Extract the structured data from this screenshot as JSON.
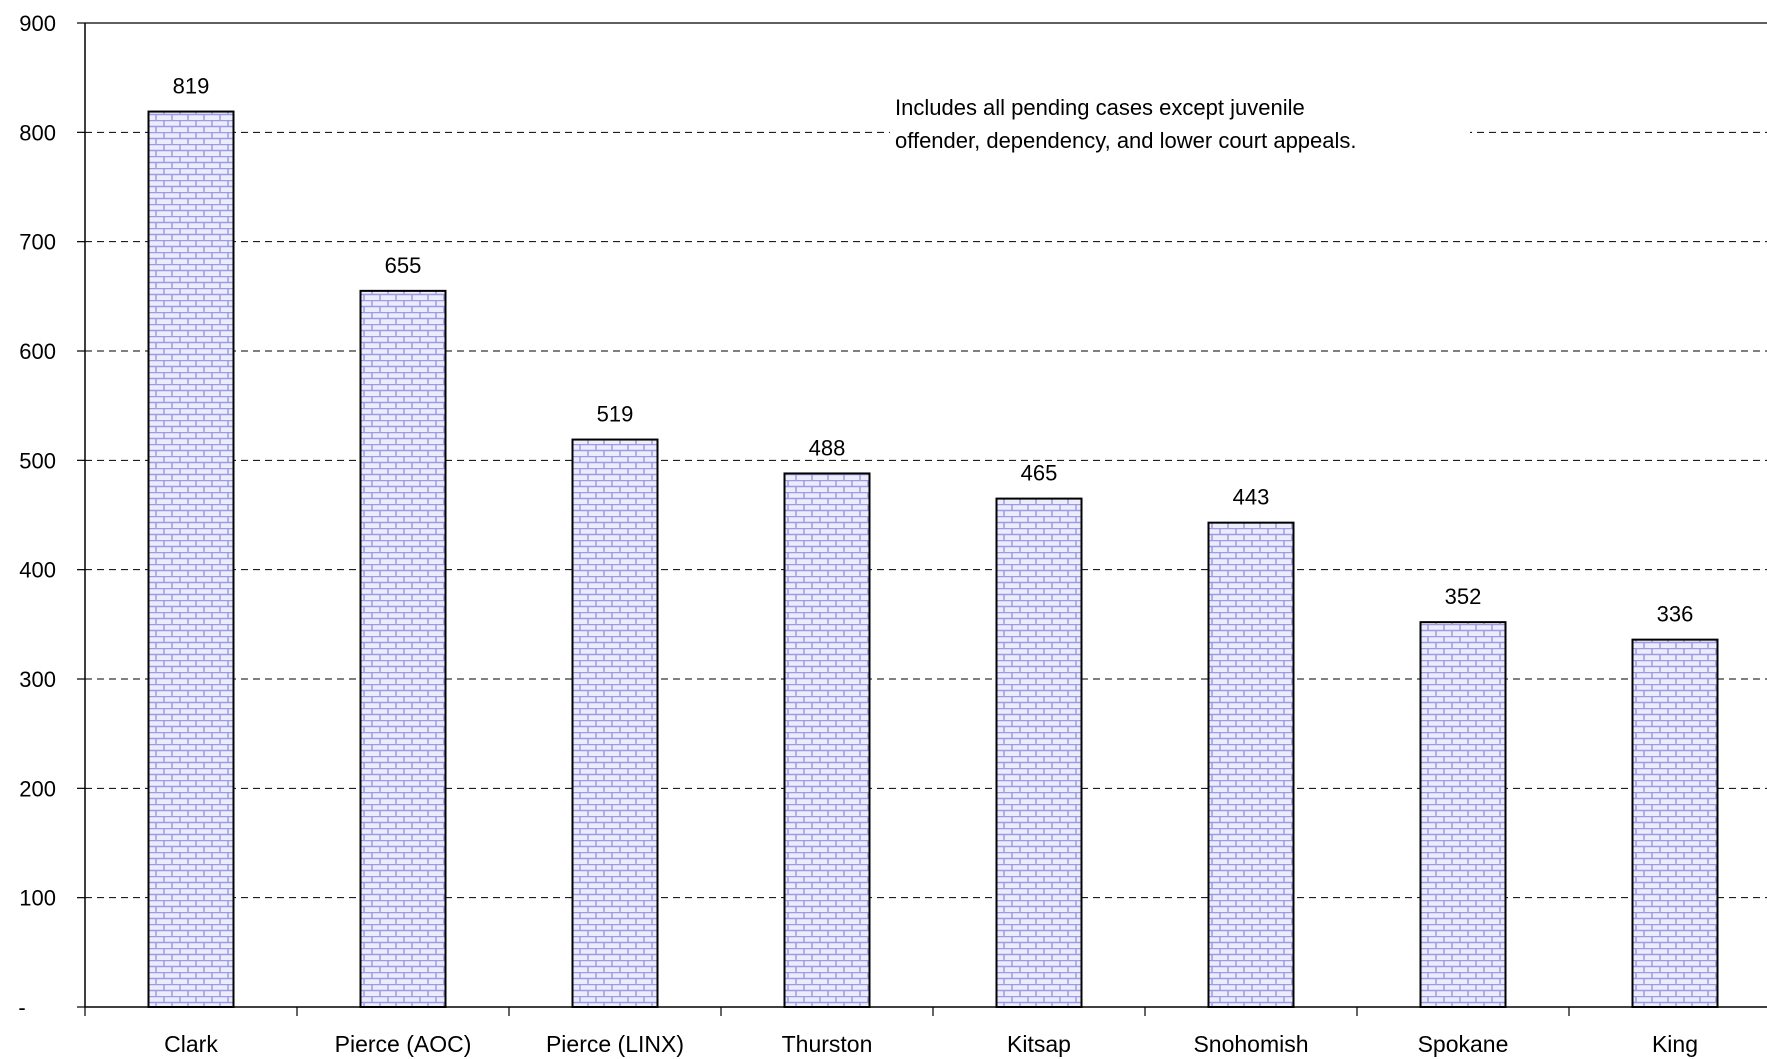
{
  "chart_data": {
    "type": "bar",
    "categories": [
      "Clark",
      "Pierce (AOC)",
      "Pierce (LINX)",
      "Thurston",
      "Kitsap",
      "Snohomish",
      "Spokane",
      "King"
    ],
    "values": [
      819,
      655,
      519,
      488,
      465,
      443,
      352,
      336
    ],
    "data_labels": [
      "819",
      "655",
      "519",
      "488",
      "465",
      "443",
      "352",
      "336"
    ],
    "ylim": [
      0,
      900
    ],
    "yticks": [
      {
        "value": 0,
        "label": "-"
      },
      {
        "value": 100,
        "label": "100"
      },
      {
        "value": 200,
        "label": "200"
      },
      {
        "value": 300,
        "label": "300"
      },
      {
        "value": 400,
        "label": "400"
      },
      {
        "value": 500,
        "label": "500"
      },
      {
        "value": 600,
        "label": "600"
      },
      {
        "value": 700,
        "label": "700"
      },
      {
        "value": 800,
        "label": "800"
      },
      {
        "value": 900,
        "label": "900"
      }
    ],
    "grid": "horizontal dashed",
    "annotation": {
      "line1": "Includes all pending cases except juvenile",
      "line2": "offender, dependency, and lower court appeals."
    },
    "colors": {
      "bar_fill": "#ececfb",
      "bar_pattern": "#9c9ce6",
      "bar_outline": "#000000",
      "grid": "#000000"
    }
  }
}
